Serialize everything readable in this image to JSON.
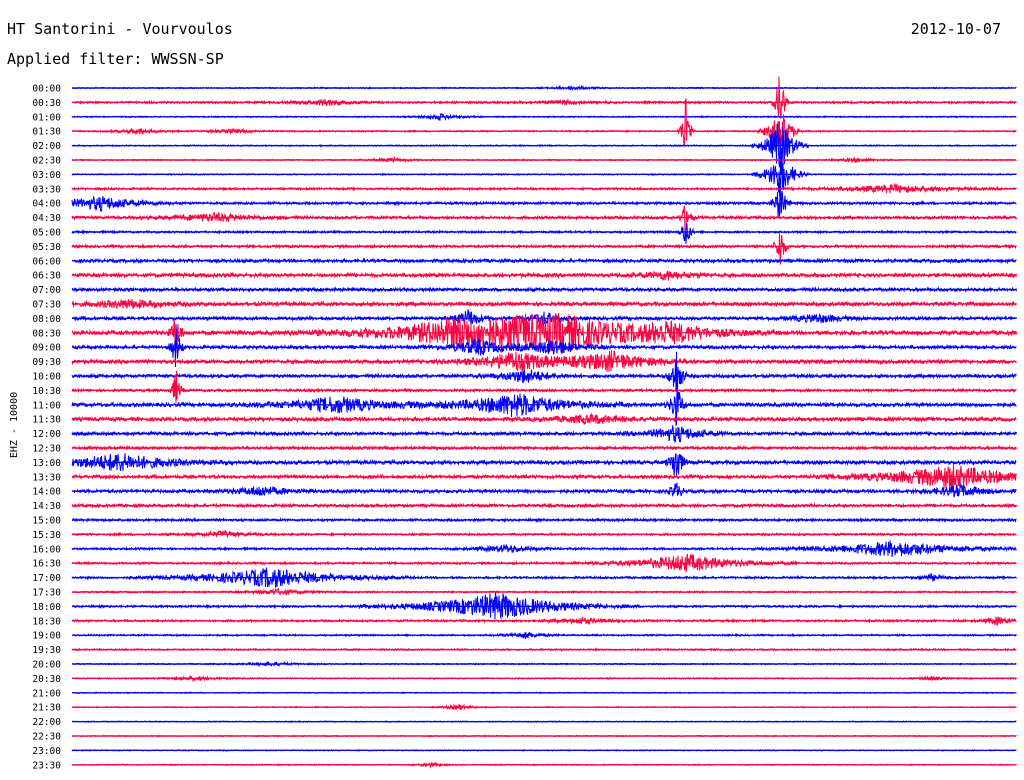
{
  "header": {
    "station": "HT Santorini - Vourvoulos",
    "date": "2012-10-07",
    "filter": "Applied filter: WWSSN-SP"
  },
  "chart_data": {
    "type": "line",
    "chart_kind": "helicorder",
    "ylabel": "EHZ - 10000",
    "colors": [
      "#0000ff",
      "#ff0040"
    ],
    "rows": [
      {
        "time": "00:00",
        "noise": 0.6,
        "events": [
          {
            "x": 0.53,
            "amp": 2,
            "dur": 0.015
          }
        ]
      },
      {
        "time": "00:30",
        "noise": 1.0,
        "events": [
          {
            "x": 0.27,
            "amp": 3,
            "dur": 0.02
          },
          {
            "x": 0.52,
            "amp": 2,
            "dur": 0.02
          },
          {
            "x": 0.75,
            "amp": 40,
            "dur": 0.003
          }
        ]
      },
      {
        "time": "01:00",
        "noise": 0.6,
        "events": [
          {
            "x": 0.39,
            "amp": 3,
            "dur": 0.015
          }
        ]
      },
      {
        "time": "01:30",
        "noise": 0.7,
        "events": [
          {
            "x": 0.07,
            "amp": 3,
            "dur": 0.015
          },
          {
            "x": 0.17,
            "amp": 2,
            "dur": 0.015
          },
          {
            "x": 0.65,
            "amp": 40,
            "dur": 0.003
          },
          {
            "x": 0.75,
            "amp": 25,
            "dur": 0.008
          }
        ]
      },
      {
        "time": "02:00",
        "noise": 0.6,
        "events": [
          {
            "x": 0.75,
            "amp": 30,
            "dur": 0.01
          }
        ]
      },
      {
        "time": "02:30",
        "noise": 0.6,
        "events": [
          {
            "x": 0.34,
            "amp": 2,
            "dur": 0.015
          },
          {
            "x": 0.83,
            "amp": 2,
            "dur": 0.015
          }
        ]
      },
      {
        "time": "03:00",
        "noise": 0.6,
        "events": [
          {
            "x": 0.75,
            "amp": 25,
            "dur": 0.01
          }
        ]
      },
      {
        "time": "03:30",
        "noise": 1.0,
        "events": [
          {
            "x": 0.87,
            "amp": 4,
            "dur": 0.04
          }
        ]
      },
      {
        "time": "04:00",
        "noise": 1.2,
        "events": [
          {
            "x": 0.03,
            "amp": 7,
            "dur": 0.03
          },
          {
            "x": 0.75,
            "amp": 25,
            "dur": 0.004
          }
        ]
      },
      {
        "time": "04:30",
        "noise": 1.4,
        "events": [
          {
            "x": 0.15,
            "amp": 4,
            "dur": 0.03
          },
          {
            "x": 0.65,
            "amp": 20,
            "dur": 0.003
          }
        ]
      },
      {
        "time": "05:00",
        "noise": 1.0,
        "events": [
          {
            "x": 0.65,
            "amp": 20,
            "dur": 0.003
          }
        ]
      },
      {
        "time": "05:30",
        "noise": 1.2,
        "events": [
          {
            "x": 0.75,
            "amp": 25,
            "dur": 0.003
          }
        ]
      },
      {
        "time": "06:00",
        "noise": 1.6,
        "events": []
      },
      {
        "time": "06:30",
        "noise": 1.8,
        "events": [
          {
            "x": 0.63,
            "amp": 4,
            "dur": 0.02
          }
        ]
      },
      {
        "time": "07:00",
        "noise": 1.6,
        "events": []
      },
      {
        "time": "07:30",
        "noise": 1.8,
        "events": [
          {
            "x": 0.06,
            "amp": 4,
            "dur": 0.03
          }
        ]
      },
      {
        "time": "08:00",
        "noise": 1.6,
        "events": [
          {
            "x": 0.42,
            "amp": 9,
            "dur": 0.01
          },
          {
            "x": 0.5,
            "amp": 7,
            "dur": 0.01
          },
          {
            "x": 0.79,
            "amp": 4,
            "dur": 0.02
          }
        ]
      },
      {
        "time": "08:30",
        "noise": 2.0,
        "events": [
          {
            "x": 0.41,
            "amp": 14,
            "dur": 0.06
          },
          {
            "x": 0.48,
            "amp": 8,
            "dur": 0.04
          },
          {
            "x": 0.52,
            "amp": 13,
            "dur": 0.05
          },
          {
            "x": 0.63,
            "amp": 10,
            "dur": 0.04
          },
          {
            "x": 0.11,
            "amp": 25,
            "dur": 0.003
          }
        ]
      },
      {
        "time": "09:00",
        "noise": 1.6,
        "events": [
          {
            "x": 0.43,
            "amp": 8,
            "dur": 0.02
          },
          {
            "x": 0.51,
            "amp": 8,
            "dur": 0.02
          },
          {
            "x": 0.11,
            "amp": 25,
            "dur": 0.003
          }
        ]
      },
      {
        "time": "09:30",
        "noise": 1.8,
        "events": [
          {
            "x": 0.47,
            "amp": 10,
            "dur": 0.03
          },
          {
            "x": 0.57,
            "amp": 10,
            "dur": 0.03
          }
        ]
      },
      {
        "time": "10:00",
        "noise": 1.6,
        "events": [
          {
            "x": 0.48,
            "amp": 7,
            "dur": 0.02
          },
          {
            "x": 0.64,
            "amp": 30,
            "dur": 0.004
          }
        ]
      },
      {
        "time": "10:30",
        "noise": 1.2,
        "events": [
          {
            "x": 0.11,
            "amp": 20,
            "dur": 0.003
          }
        ]
      },
      {
        "time": "11:00",
        "noise": 1.8,
        "events": [
          {
            "x": 0.28,
            "amp": 8,
            "dur": 0.04
          },
          {
            "x": 0.47,
            "amp": 12,
            "dur": 0.04
          },
          {
            "x": 0.64,
            "amp": 25,
            "dur": 0.004
          }
        ]
      },
      {
        "time": "11:30",
        "noise": 1.8,
        "events": [
          {
            "x": 0.55,
            "amp": 4,
            "dur": 0.03
          }
        ]
      },
      {
        "time": "12:00",
        "noise": 1.6,
        "events": [
          {
            "x": 0.64,
            "amp": 8,
            "dur": 0.02
          }
        ]
      },
      {
        "time": "12:30",
        "noise": 1.4,
        "events": []
      },
      {
        "time": "13:00",
        "noise": 1.8,
        "events": [
          {
            "x": 0.05,
            "amp": 9,
            "dur": 0.04
          },
          {
            "x": 0.64,
            "amp": 25,
            "dur": 0.004
          }
        ]
      },
      {
        "time": "13:30",
        "noise": 1.6,
        "events": [
          {
            "x": 0.93,
            "amp": 12,
            "dur": 0.05
          }
        ]
      },
      {
        "time": "14:00",
        "noise": 1.6,
        "events": [
          {
            "x": 0.2,
            "amp": 5,
            "dur": 0.02
          },
          {
            "x": 0.94,
            "amp": 6,
            "dur": 0.02
          },
          {
            "x": 0.64,
            "amp": 10,
            "dur": 0.004
          }
        ]
      },
      {
        "time": "14:30",
        "noise": 1.4,
        "events": []
      },
      {
        "time": "15:00",
        "noise": 1.2,
        "events": []
      },
      {
        "time": "15:30",
        "noise": 1.0,
        "events": [
          {
            "x": 0.16,
            "amp": 3,
            "dur": 0.02
          }
        ]
      },
      {
        "time": "16:00",
        "noise": 1.0,
        "events": [
          {
            "x": 0.46,
            "amp": 4,
            "dur": 0.02
          },
          {
            "x": 0.87,
            "amp": 8,
            "dur": 0.05
          }
        ]
      },
      {
        "time": "16:30",
        "noise": 1.0,
        "events": [
          {
            "x": 0.65,
            "amp": 9,
            "dur": 0.04
          }
        ]
      },
      {
        "time": "17:00",
        "noise": 1.0,
        "events": [
          {
            "x": 0.21,
            "amp": 10,
            "dur": 0.05
          },
          {
            "x": 0.91,
            "amp": 3,
            "dur": 0.01
          }
        ]
      },
      {
        "time": "17:30",
        "noise": 0.8,
        "events": [
          {
            "x": 0.22,
            "amp": 3,
            "dur": 0.02
          }
        ]
      },
      {
        "time": "18:00",
        "noise": 1.0,
        "events": [
          {
            "x": 0.45,
            "amp": 14,
            "dur": 0.05
          }
        ]
      },
      {
        "time": "18:30",
        "noise": 1.0,
        "events": [
          {
            "x": 0.54,
            "amp": 3,
            "dur": 0.02
          },
          {
            "x": 0.98,
            "amp": 4,
            "dur": 0.01
          }
        ]
      },
      {
        "time": "19:00",
        "noise": 0.8,
        "events": [
          {
            "x": 0.48,
            "amp": 3,
            "dur": 0.015
          }
        ]
      },
      {
        "time": "19:30",
        "noise": 0.8,
        "events": []
      },
      {
        "time": "20:00",
        "noise": 0.6,
        "events": [
          {
            "x": 0.21,
            "amp": 2,
            "dur": 0.02
          }
        ]
      },
      {
        "time": "20:30",
        "noise": 0.6,
        "events": [
          {
            "x": 0.13,
            "amp": 2,
            "dur": 0.02
          },
          {
            "x": 0.91,
            "amp": 2,
            "dur": 0.01
          }
        ]
      },
      {
        "time": "21:00",
        "noise": 0.5,
        "events": []
      },
      {
        "time": "21:30",
        "noise": 0.5,
        "events": [
          {
            "x": 0.41,
            "amp": 3,
            "dur": 0.01
          }
        ]
      },
      {
        "time": "22:00",
        "noise": 0.5,
        "events": []
      },
      {
        "time": "22:30",
        "noise": 0.5,
        "events": []
      },
      {
        "time": "23:00",
        "noise": 0.5,
        "events": []
      },
      {
        "time": "23:30",
        "noise": 0.5,
        "events": [
          {
            "x": 0.38,
            "amp": 2,
            "dur": 0.01
          }
        ]
      }
    ]
  }
}
